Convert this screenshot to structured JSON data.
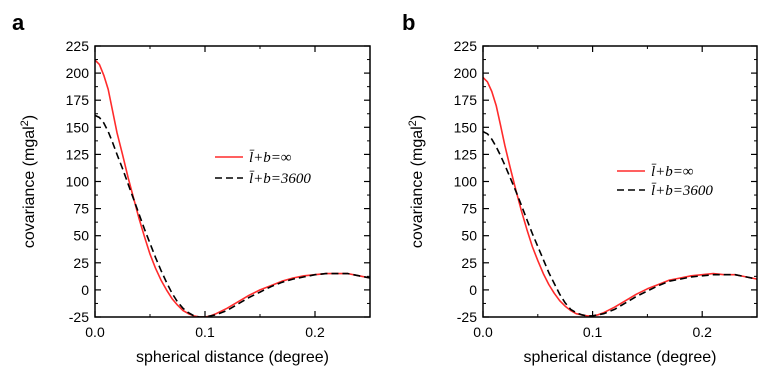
{
  "chart_data": [
    {
      "type": "line",
      "panel_label": "a",
      "xlabel": "spherical distance (degree)",
      "ylabel": "covariance (mgal",
      "ylabel_sup": "2",
      "ylabel_close": ")",
      "xlim": [
        0,
        0.25
      ],
      "ylim": [
        -25,
        225
      ],
      "xticks": [
        "0.0",
        "0.1",
        "0.2"
      ],
      "yticks": [
        "-25",
        "0",
        "25",
        "50",
        "75",
        "100",
        "125",
        "150",
        "175",
        "200",
        "225"
      ],
      "legend_position": "right-middle",
      "grid": false,
      "series": [
        {
          "name": "l̄+b=∞",
          "color": "#ff2b2b",
          "dash": "solid",
          "x": [
            0,
            0.004,
            0.008,
            0.012,
            0.016,
            0.02,
            0.025,
            0.03,
            0.035,
            0.04,
            0.045,
            0.05,
            0.055,
            0.06,
            0.065,
            0.07,
            0.075,
            0.08,
            0.085,
            0.09,
            0.095,
            0.1,
            0.105,
            0.11,
            0.12,
            0.13,
            0.14,
            0.15,
            0.16,
            0.17,
            0.18,
            0.19,
            0.2,
            0.21,
            0.22,
            0.23,
            0.24,
            0.25
          ],
          "y": [
            212,
            208,
            198,
            185,
            165,
            145,
            125,
            104,
            85,
            66,
            49,
            33,
            20,
            9,
            0,
            -8,
            -14,
            -19,
            -22,
            -24,
            -25,
            -25,
            -24,
            -22,
            -17,
            -11,
            -5,
            0,
            4,
            8,
            11,
            13,
            14,
            15,
            15,
            15,
            13,
            11
          ]
        },
        {
          "name": "l̄+b=3600",
          "color": "#000000",
          "dash": "dashed",
          "x": [
            0,
            0.004,
            0.008,
            0.012,
            0.016,
            0.02,
            0.025,
            0.03,
            0.035,
            0.04,
            0.045,
            0.05,
            0.055,
            0.06,
            0.065,
            0.07,
            0.075,
            0.08,
            0.085,
            0.09,
            0.095,
            0.1,
            0.105,
            0.11,
            0.12,
            0.13,
            0.14,
            0.15,
            0.16,
            0.17,
            0.18,
            0.19,
            0.2,
            0.21,
            0.22,
            0.23,
            0.24,
            0.25
          ],
          "y": [
            161,
            159,
            154,
            146,
            136,
            125,
            112,
            98,
            84,
            70,
            56,
            43,
            30,
            18,
            7,
            -3,
            -11,
            -17,
            -21,
            -24,
            -25,
            -25,
            -24,
            -23,
            -19,
            -13,
            -7,
            -2,
            3,
            7,
            10,
            12,
            14,
            15,
            15,
            15,
            13,
            11
          ]
        }
      ]
    },
    {
      "type": "line",
      "panel_label": "b",
      "xlabel": "spherical distance (degree)",
      "ylabel": "covariance (mgal",
      "ylabel_sup": "2",
      "ylabel_close": ")",
      "xlim": [
        0,
        0.25
      ],
      "ylim": [
        -25,
        225
      ],
      "xticks": [
        "0.0",
        "0.1",
        "0.2"
      ],
      "yticks": [
        "-25",
        "0",
        "25",
        "50",
        "75",
        "100",
        "125",
        "150",
        "175",
        "200",
        "225"
      ],
      "legend_position": "right-middle",
      "grid": false,
      "series": [
        {
          "name": "l̄+b=∞",
          "color": "#ff2b2b",
          "dash": "solid",
          "x": [
            0,
            0.004,
            0.008,
            0.012,
            0.016,
            0.02,
            0.025,
            0.03,
            0.035,
            0.04,
            0.045,
            0.05,
            0.055,
            0.06,
            0.065,
            0.07,
            0.075,
            0.08,
            0.085,
            0.09,
            0.095,
            0.1,
            0.105,
            0.11,
            0.12,
            0.13,
            0.14,
            0.15,
            0.16,
            0.17,
            0.18,
            0.19,
            0.2,
            0.21,
            0.22,
            0.23,
            0.24,
            0.25
          ],
          "y": [
            196,
            192,
            183,
            170,
            152,
            133,
            112,
            92,
            73,
            56,
            40,
            27,
            15,
            5,
            -3,
            -10,
            -15,
            -19,
            -22,
            -23,
            -24,
            -24,
            -23,
            -21,
            -16,
            -10,
            -4,
            1,
            5,
            9,
            11,
            13,
            14,
            15,
            14,
            14,
            12,
            10
          ]
        },
        {
          "name": "l̄+b=3600",
          "color": "#000000",
          "dash": "dashed",
          "x": [
            0,
            0.004,
            0.008,
            0.012,
            0.016,
            0.02,
            0.025,
            0.03,
            0.035,
            0.04,
            0.045,
            0.05,
            0.055,
            0.06,
            0.065,
            0.07,
            0.075,
            0.08,
            0.085,
            0.09,
            0.095,
            0.1,
            0.105,
            0.11,
            0.12,
            0.13,
            0.14,
            0.15,
            0.16,
            0.17,
            0.18,
            0.19,
            0.2,
            0.21,
            0.22,
            0.23,
            0.24,
            0.25
          ],
          "y": [
            146,
            144,
            139,
            132,
            124,
            115,
            103,
            91,
            78,
            65,
            52,
            40,
            28,
            16,
            6,
            -4,
            -12,
            -18,
            -21,
            -23,
            -24,
            -24,
            -23,
            -22,
            -18,
            -12,
            -6,
            -1,
            4,
            8,
            10,
            12,
            13,
            14,
            14,
            14,
            12,
            10
          ]
        }
      ]
    }
  ]
}
